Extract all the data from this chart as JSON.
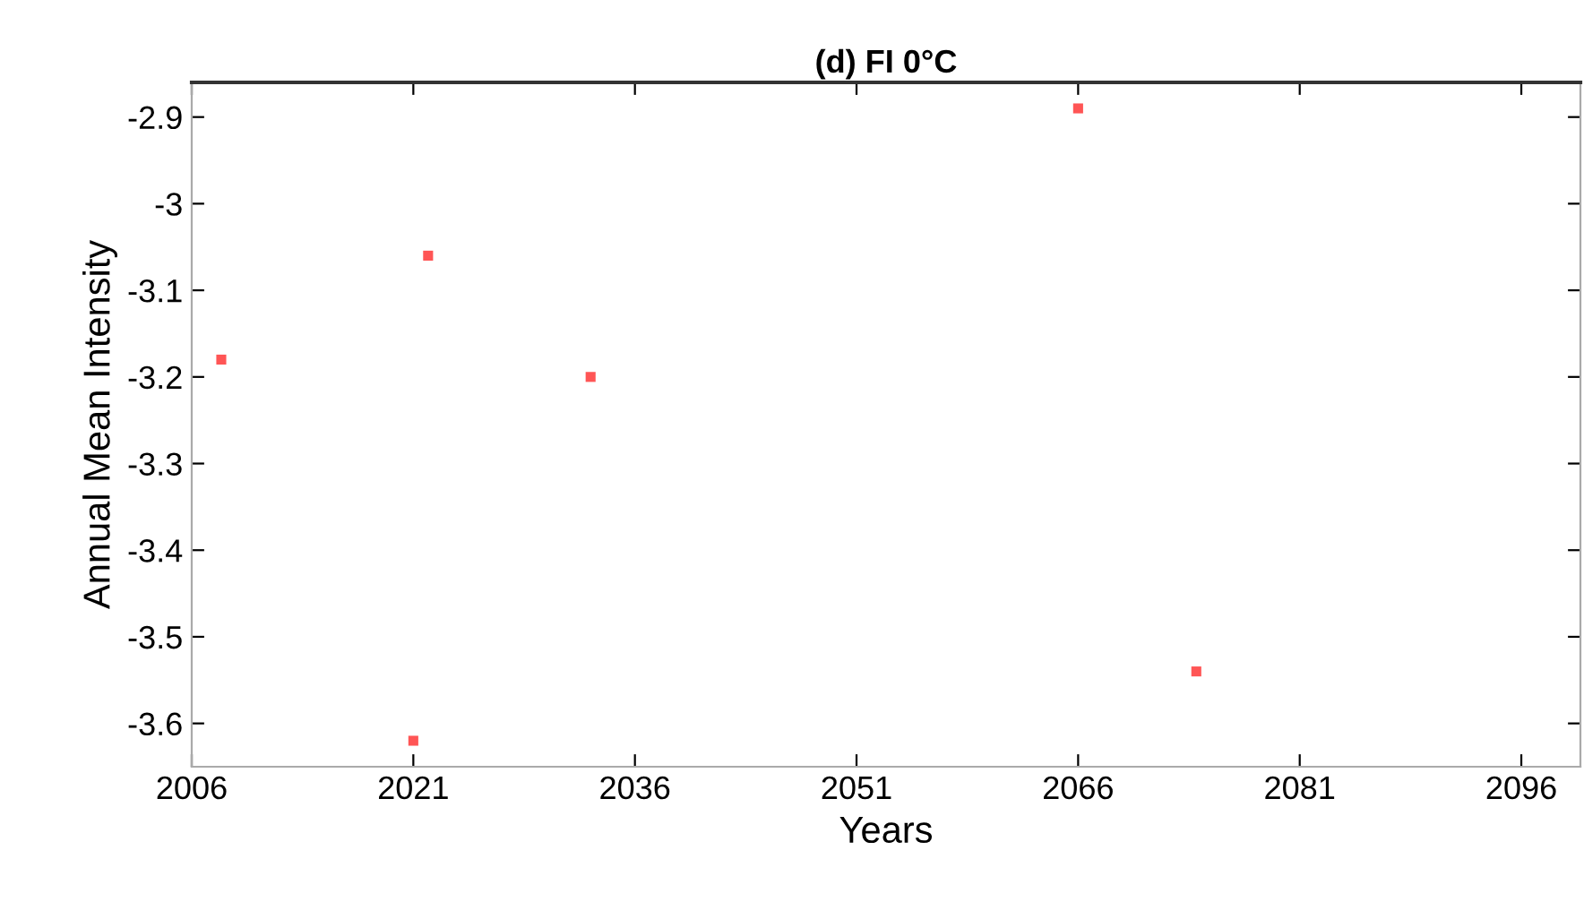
{
  "chart_data": {
    "type": "scatter",
    "title": "(d) FI 0°C",
    "xlabel": "Years",
    "ylabel": "Annual Mean Intensity",
    "x": [
      2008,
      2021,
      2022,
      2033,
      2066,
      2074
    ],
    "series": [
      {
        "color": "#ff5555",
        "values": [
          -3.18,
          -3.62,
          -3.06,
          -3.2,
          -2.89,
          -3.54
        ]
      }
    ],
    "marker": "square",
    "xlim": [
      2006,
      2100
    ],
    "xticks": [
      2006,
      2021,
      2036,
      2051,
      2066,
      2081,
      2096
    ],
    "ylim": [
      -3.65,
      -2.86
    ],
    "yticks": [
      -3.6,
      -3.5,
      -3.4,
      -3.3,
      -3.2,
      -3.1,
      -3,
      -2.9
    ],
    "grid": false
  }
}
